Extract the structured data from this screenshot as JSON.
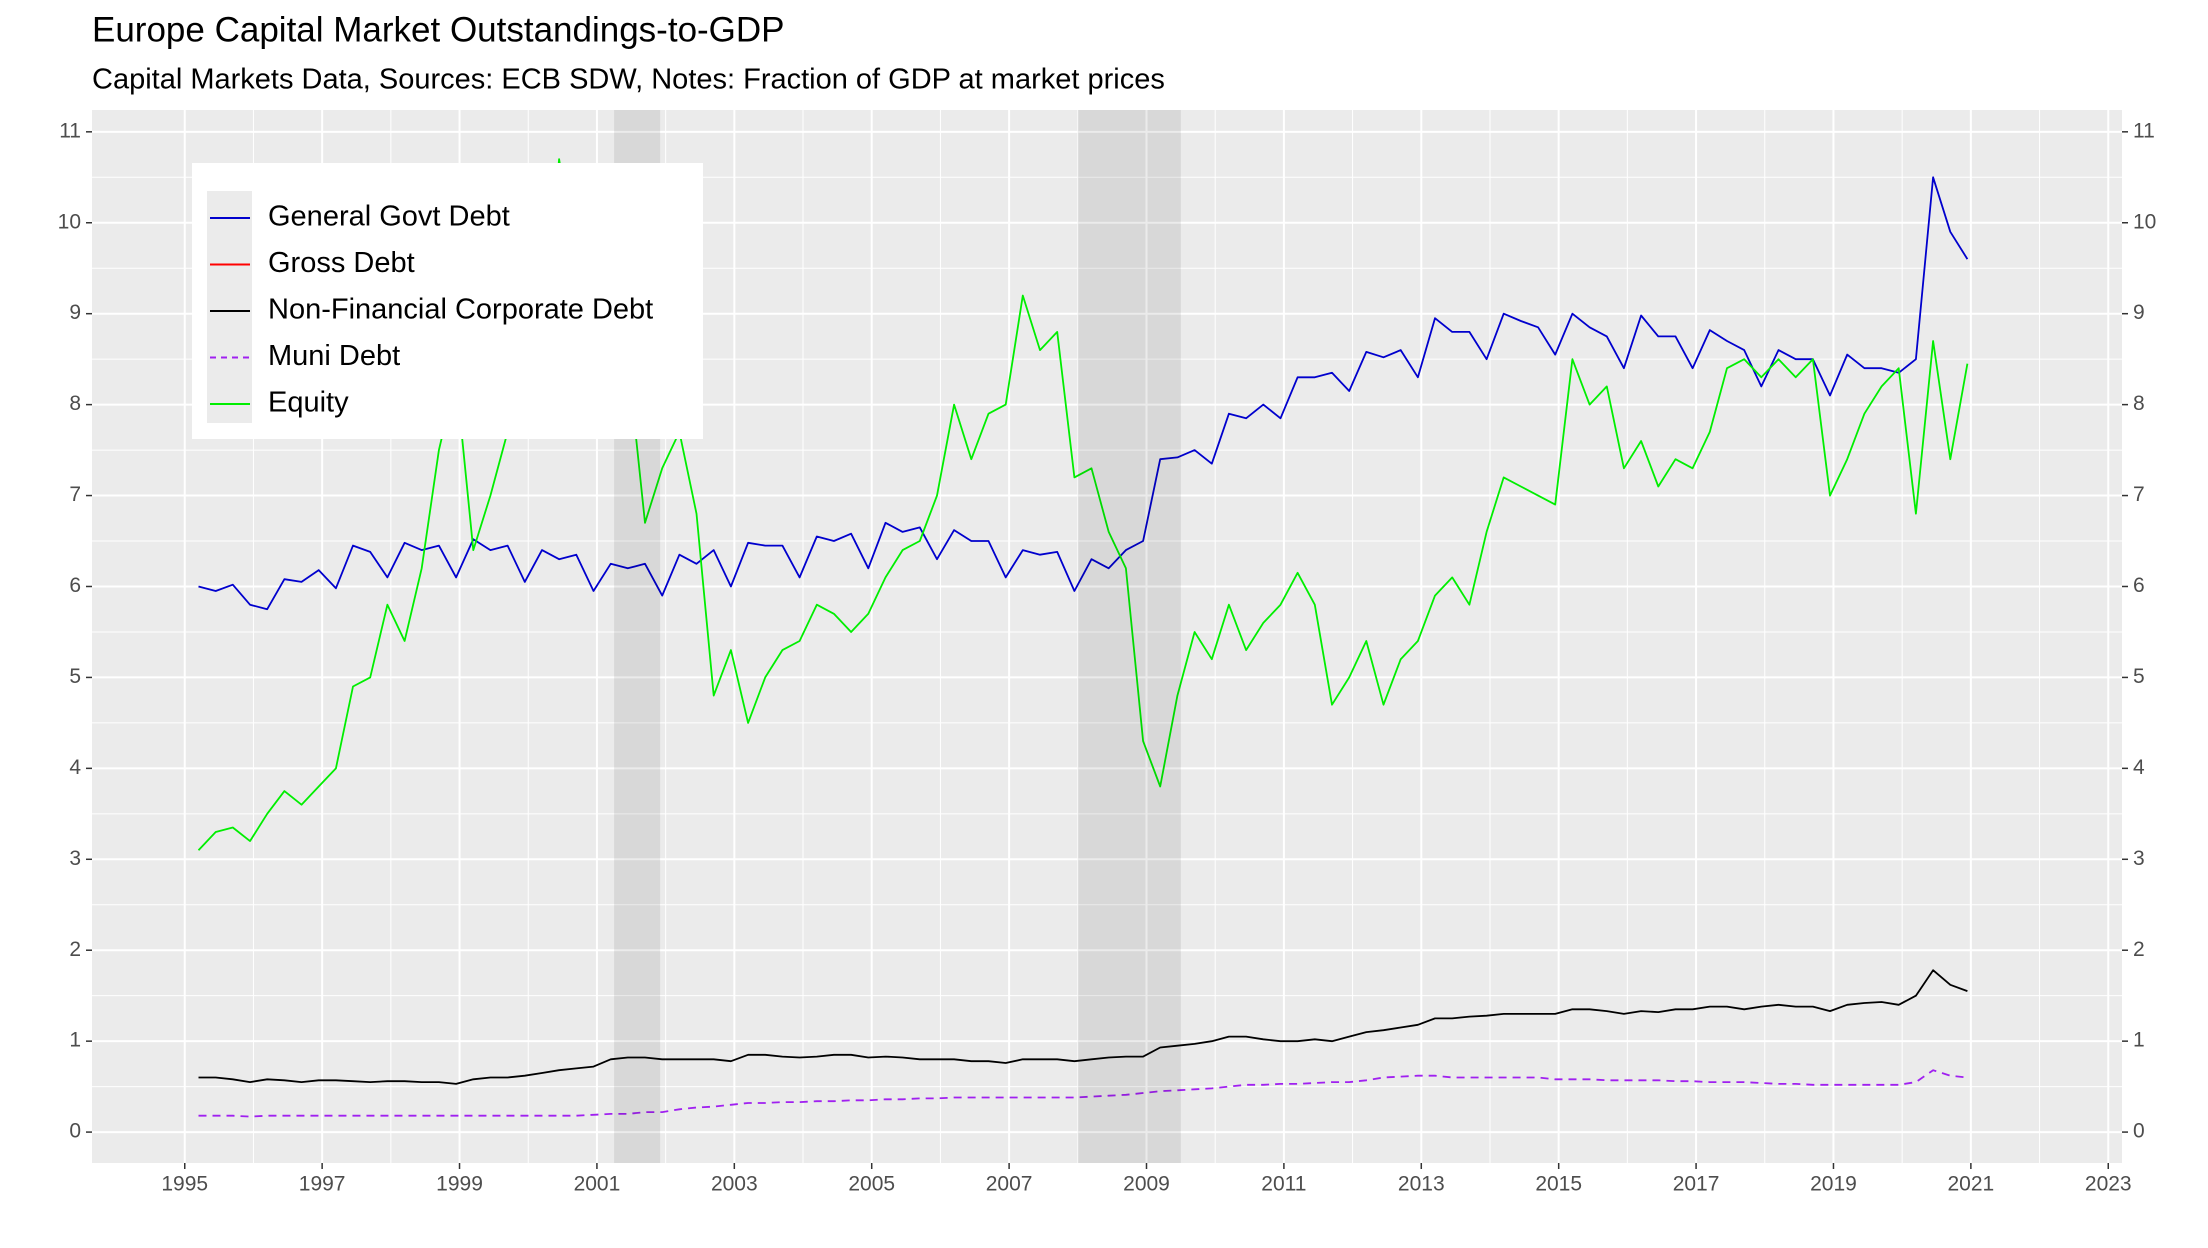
{
  "chart_data": {
    "type": "line",
    "title": "Europe Capital Market Outstandings-to-GDP",
    "subtitle": "Capital Markets Data, Sources: ECB SDW, Notes: Fraction of GDP at market prices",
    "x": [
      1995.2,
      1995.45,
      1995.7,
      1995.95,
      1996.2,
      1996.45,
      1996.7,
      1996.95,
      1997.2,
      1997.45,
      1997.7,
      1997.95,
      1998.2,
      1998.45,
      1998.7,
      1998.95,
      1999.2,
      1999.45,
      1999.7,
      1999.95,
      2000.2,
      2000.45,
      2000.7,
      2000.95,
      2001.2,
      2001.45,
      2001.7,
      2001.95,
      2002.2,
      2002.45,
      2002.7,
      2002.95,
      2003.2,
      2003.45,
      2003.7,
      2003.95,
      2004.2,
      2004.45,
      2004.7,
      2004.95,
      2005.2,
      2005.45,
      2005.7,
      2005.95,
      2006.2,
      2006.45,
      2006.7,
      2006.95,
      2007.2,
      2007.45,
      2007.7,
      2007.95,
      2008.2,
      2008.45,
      2008.7,
      2008.95,
      2009.2,
      2009.45,
      2009.7,
      2009.95,
      2010.2,
      2010.45,
      2010.7,
      2010.95,
      2011.2,
      2011.45,
      2011.7,
      2011.95,
      2012.2,
      2012.45,
      2012.7,
      2012.95,
      2013.2,
      2013.45,
      2013.7,
      2013.95,
      2014.2,
      2014.45,
      2014.7,
      2014.95,
      2015.2,
      2015.45,
      2015.7,
      2015.95,
      2016.2,
      2016.45,
      2016.7,
      2016.95,
      2017.2,
      2017.45,
      2017.7,
      2017.95,
      2018.2,
      2018.45,
      2018.7,
      2018.95,
      2019.2,
      2019.45,
      2019.7,
      2019.95,
      2020.2,
      2020.45,
      2020.7,
      2020.95
    ],
    "series": [
      {
        "name": "General Govt Debt",
        "color": "#0000cd",
        "dash": false,
        "values": [
          6.0,
          5.95,
          6.02,
          5.8,
          5.75,
          6.08,
          6.05,
          6.18,
          5.98,
          6.45,
          6.38,
          6.1,
          6.48,
          6.4,
          6.45,
          6.1,
          6.52,
          6.4,
          6.45,
          6.05,
          6.4,
          6.3,
          6.35,
          5.95,
          6.25,
          6.2,
          6.25,
          5.9,
          6.35,
          6.25,
          6.4,
          6.0,
          6.48,
          6.45,
          6.45,
          6.1,
          6.55,
          6.5,
          6.58,
          6.2,
          6.7,
          6.6,
          6.65,
          6.3,
          6.62,
          6.5,
          6.5,
          6.1,
          6.4,
          6.35,
          6.38,
          5.95,
          6.3,
          6.2,
          6.4,
          6.5,
          7.4,
          7.42,
          7.5,
          7.35,
          7.9,
          7.85,
          8.0,
          7.85,
          8.3,
          8.3,
          8.35,
          8.15,
          8.58,
          8.52,
          8.6,
          8.3,
          8.95,
          8.8,
          8.8,
          8.5,
          9.0,
          8.92,
          8.85,
          8.55,
          9.0,
          8.85,
          8.75,
          8.4,
          8.98,
          8.75,
          8.75,
          8.4,
          8.82,
          8.7,
          8.6,
          8.2,
          8.6,
          8.5,
          8.5,
          8.1,
          8.55,
          8.4,
          8.4,
          8.35,
          8.5,
          10.5,
          9.9,
          9.6
        ]
      },
      {
        "name": "Gross Debt",
        "color": "#ff0000",
        "dash": false,
        "values": [
          null,
          null,
          null,
          null,
          null,
          null,
          null,
          null,
          null,
          null,
          null,
          null,
          null,
          null,
          null,
          null,
          null,
          null,
          null,
          null,
          null,
          null,
          null,
          null,
          null,
          null,
          null,
          null,
          null,
          null,
          null,
          null,
          null,
          null,
          null,
          null,
          null,
          null,
          null,
          null,
          null,
          null,
          null,
          null,
          null,
          null,
          null,
          null,
          null,
          null,
          null,
          null,
          null,
          null,
          null,
          null,
          null,
          null,
          null,
          null,
          null,
          null,
          null,
          null,
          null,
          null,
          null,
          null,
          null,
          null,
          null,
          null,
          null,
          null,
          null,
          null,
          null,
          null,
          null,
          null,
          null,
          null,
          null,
          null,
          null,
          null,
          null,
          null,
          null,
          null,
          null,
          null,
          null,
          null,
          null,
          null,
          null,
          null,
          null,
          null,
          null,
          null,
          null,
          null
        ]
      },
      {
        "name": "Non-Financial Corporate Debt",
        "color": "#000000",
        "dash": false,
        "values": [
          0.6,
          0.6,
          0.58,
          0.55,
          0.58,
          0.57,
          0.55,
          0.57,
          0.57,
          0.56,
          0.55,
          0.56,
          0.56,
          0.55,
          0.55,
          0.53,
          0.58,
          0.6,
          0.6,
          0.62,
          0.65,
          0.68,
          0.7,
          0.72,
          0.8,
          0.82,
          0.82,
          0.8,
          0.8,
          0.8,
          0.8,
          0.78,
          0.85,
          0.85,
          0.83,
          0.82,
          0.83,
          0.85,
          0.85,
          0.82,
          0.83,
          0.82,
          0.8,
          0.8,
          0.8,
          0.78,
          0.78,
          0.76,
          0.8,
          0.8,
          0.8,
          0.78,
          0.8,
          0.82,
          0.83,
          0.83,
          0.93,
          0.95,
          0.97,
          1.0,
          1.05,
          1.05,
          1.02,
          1.0,
          1.0,
          1.02,
          1.0,
          1.05,
          1.1,
          1.12,
          1.15,
          1.18,
          1.25,
          1.25,
          1.27,
          1.28,
          1.3,
          1.3,
          1.3,
          1.3,
          1.35,
          1.35,
          1.33,
          1.3,
          1.33,
          1.32,
          1.35,
          1.35,
          1.38,
          1.38,
          1.35,
          1.38,
          1.4,
          1.38,
          1.38,
          1.33,
          1.4,
          1.42,
          1.43,
          1.4,
          1.5,
          1.78,
          1.62,
          1.55
        ]
      },
      {
        "name": "Muni Debt",
        "color": "#a020f0",
        "dash": true,
        "values": [
          0.18,
          0.18,
          0.18,
          0.17,
          0.18,
          0.18,
          0.18,
          0.18,
          0.18,
          0.18,
          0.18,
          0.18,
          0.18,
          0.18,
          0.18,
          0.18,
          0.18,
          0.18,
          0.18,
          0.18,
          0.18,
          0.18,
          0.18,
          0.19,
          0.2,
          0.2,
          0.22,
          0.22,
          0.25,
          0.27,
          0.28,
          0.3,
          0.32,
          0.32,
          0.33,
          0.33,
          0.34,
          0.34,
          0.35,
          0.35,
          0.36,
          0.36,
          0.37,
          0.37,
          0.38,
          0.38,
          0.38,
          0.38,
          0.38,
          0.38,
          0.38,
          0.38,
          0.39,
          0.4,
          0.41,
          0.43,
          0.45,
          0.46,
          0.47,
          0.48,
          0.5,
          0.52,
          0.52,
          0.53,
          0.53,
          0.54,
          0.55,
          0.55,
          0.57,
          0.6,
          0.61,
          0.62,
          0.62,
          0.6,
          0.6,
          0.6,
          0.6,
          0.6,
          0.6,
          0.58,
          0.58,
          0.58,
          0.57,
          0.57,
          0.57,
          0.57,
          0.56,
          0.56,
          0.55,
          0.55,
          0.55,
          0.54,
          0.53,
          0.53,
          0.52,
          0.52,
          0.52,
          0.52,
          0.52,
          0.52,
          0.55,
          0.68,
          0.62,
          0.6
        ]
      },
      {
        "name": "Equity",
        "color": "#00ee00",
        "dash": false,
        "values": [
          3.1,
          3.3,
          3.35,
          3.2,
          3.5,
          3.75,
          3.6,
          3.8,
          4.0,
          4.9,
          5.0,
          5.8,
          5.4,
          6.2,
          7.5,
          8.3,
          6.4,
          7.0,
          7.7,
          8.0,
          8.5,
          10.7,
          9.5,
          8.8,
          8.6,
          8.5,
          6.7,
          7.3,
          7.7,
          6.8,
          4.8,
          5.3,
          4.5,
          5.0,
          5.3,
          5.4,
          5.8,
          5.7,
          5.5,
          5.7,
          6.1,
          6.4,
          6.5,
          7.0,
          8.0,
          7.4,
          7.9,
          8.0,
          9.2,
          8.6,
          8.8,
          7.2,
          7.3,
          6.6,
          6.2,
          4.3,
          3.8,
          4.8,
          5.5,
          5.2,
          5.8,
          5.3,
          5.6,
          5.8,
          6.15,
          5.8,
          4.7,
          5.0,
          5.4,
          4.7,
          5.2,
          5.4,
          5.9,
          6.1,
          5.8,
          6.6,
          7.2,
          7.1,
          7.0,
          6.9,
          8.5,
          8.0,
          8.2,
          7.3,
          7.6,
          7.1,
          7.4,
          7.3,
          7.7,
          8.4,
          8.5,
          8.3,
          8.5,
          8.3,
          8.5,
          7.0,
          7.4,
          7.9,
          8.2,
          8.4,
          6.8,
          8.7,
          7.4,
          8.45
        ]
      }
    ],
    "shaded_periods": [
      [
        2001.25,
        2001.92
      ],
      [
        2008.0,
        2009.5
      ]
    ],
    "xlim": [
      1993.65,
      2023.2
    ],
    "xticks": [
      1995,
      1997,
      1999,
      2001,
      2003,
      2005,
      2007,
      2009,
      2011,
      2013,
      2015,
      2017,
      2019,
      2021,
      2023
    ],
    "ylim": [
      -0.34,
      11.24
    ],
    "yticks": [
      0,
      1,
      2,
      3,
      4,
      5,
      6,
      7,
      8,
      9,
      10,
      11
    ],
    "secondary_axis": true,
    "grid": true,
    "legend_position": "top-left"
  }
}
